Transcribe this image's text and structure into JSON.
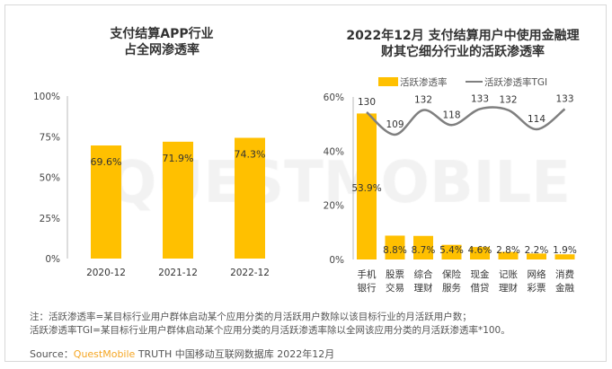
{
  "colors": {
    "bar": "#ffc000",
    "line": "#7f7f7f",
    "brand": "#f5a623"
  },
  "watermark": "QUESTMOBILE",
  "chart_data": [
    {
      "type": "bar",
      "title_lines": [
        "支付结算APP行业",
        "占全网渗透率"
      ],
      "categories": [
        "2020-12",
        "2021-12",
        "2022-12"
      ],
      "values": [
        69.6,
        71.9,
        74.3
      ],
      "data_labels": [
        "69.6%",
        "71.9%",
        "74.3%"
      ],
      "ylim": [
        0,
        100
      ],
      "yticks": [
        "0%",
        "25%",
        "50%",
        "75%",
        "100%"
      ],
      "grid": false
    },
    {
      "type": "bar+line",
      "title_lines": [
        "2022年12月 支付结算用户中使用金融理",
        "财其它细分行业的活跃渗透率"
      ],
      "categories": [
        [
          "手机",
          "银行"
        ],
        [
          "股票",
          "交易"
        ],
        [
          "综合",
          "理财"
        ],
        [
          "保险",
          "服务"
        ],
        [
          "现金",
          "借贷"
        ],
        [
          "记账",
          "理财"
        ],
        [
          "网络",
          "彩票"
        ],
        [
          "消费",
          "金融"
        ]
      ],
      "series": [
        {
          "name": "活跃渗透率",
          "type": "bar",
          "values": [
            53.9,
            8.8,
            8.7,
            5.4,
            4.6,
            2.8,
            2.2,
            1.9
          ],
          "data_labels": [
            "53.9%",
            "8.8%",
            "8.7%",
            "5.4%",
            "4.6%",
            "2.8%",
            "2.2%",
            "1.9%"
          ]
        },
        {
          "name": "活跃渗透率TGI",
          "type": "line",
          "values": [
            130,
            109,
            132,
            118,
            133,
            132,
            114,
            133
          ]
        }
      ],
      "ylim": [
        0,
        60
      ],
      "yticks": [
        "0%",
        "20%",
        "40%",
        "60%"
      ],
      "legend": "top",
      "grid": false
    }
  ],
  "notes": [
    "注：活跃渗透率=某目标行业用户群体启动某个应用分类的月活跃用户数除以该目标行业的月活跃用户数；",
    "活跃渗透率TGI=某目标行业用户群体启动某个应用分类的月活跃渗透率除以全网该应用分类的月活跃渗透率*100。"
  ],
  "source": {
    "label": "Source：",
    "brand": "QuestMobile",
    "text": "TRUTH 中国移动互联网数据库 2022年12月"
  }
}
